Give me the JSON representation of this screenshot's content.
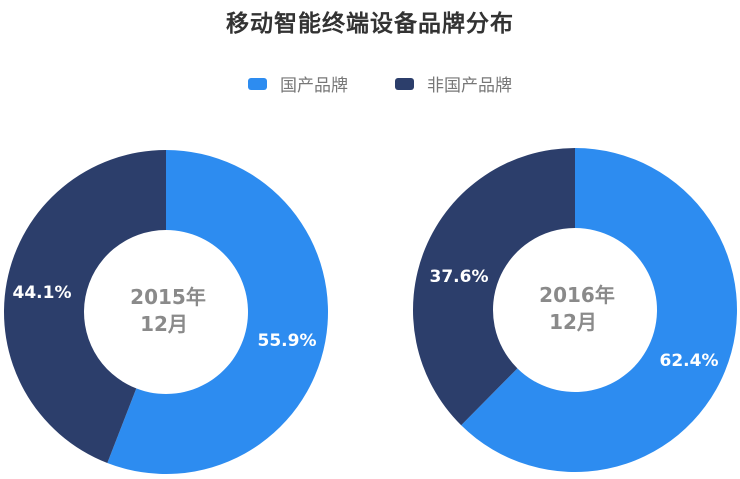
{
  "chart_data": {
    "type": "pie",
    "variant": "donut",
    "title": "移动智能终端设备品牌分布",
    "legend": {
      "position": "top",
      "entries": [
        {
          "name": "国产品牌",
          "color": "#2d8cf0"
        },
        {
          "name": "非国产品牌",
          "color": "#2c3e6b"
        }
      ]
    },
    "charts": [
      {
        "center_label": [
          "2015年",
          "12月"
        ],
        "slices": [
          {
            "name": "国产品牌",
            "value": 55.9,
            "label": "55.9%",
            "color": "#2d8cf0"
          },
          {
            "name": "非国产品牌",
            "value": 44.1,
            "label": "44.1%",
            "color": "#2c3e6b"
          }
        ]
      },
      {
        "center_label": [
          "2016年",
          "12月"
        ],
        "slices": [
          {
            "name": "国产品牌",
            "value": 62.4,
            "label": "62.4%",
            "color": "#2d8cf0"
          },
          {
            "name": "非国产品牌",
            "value": 37.6,
            "label": "37.6%",
            "color": "#2c3e6b"
          }
        ]
      }
    ]
  },
  "header": {
    "title": "移动智能终端设备品牌分布"
  },
  "legend": {
    "items": [
      {
        "label": "国产品牌",
        "color": "#2d8cf0"
      },
      {
        "label": "非国产品牌",
        "color": "#2c3e6b"
      }
    ]
  },
  "donuts": [
    {
      "line1": "2015年",
      "line2": "12月",
      "domestic_label": "55.9%",
      "foreign_label": "44.1%"
    },
    {
      "line1": "2016年",
      "line2": "12月",
      "domestic_label": "62.4%",
      "foreign_label": "37.6%"
    }
  ]
}
